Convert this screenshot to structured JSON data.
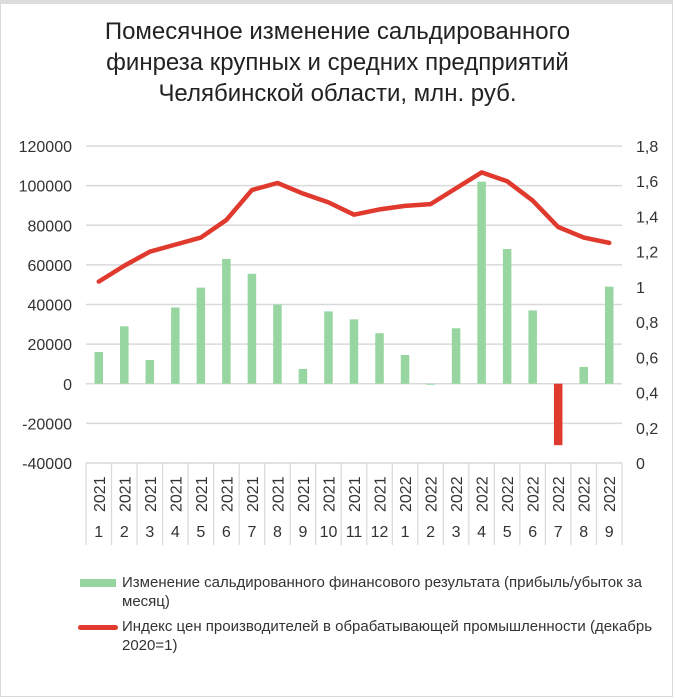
{
  "title": "Помесячное изменение сальдированного\nфинреза крупных и средних предприятий\nЧелябинской области, млн. руб.",
  "colors": {
    "bar_positive": "#97d5a1",
    "bar_negative": "#e0392d",
    "line": "#e0392d",
    "grid": "#d9d9d9",
    "axis_text": "#333333"
  },
  "legend": {
    "bar_label": "Изменение сальдированного финансового результата (прибыль/убыток за месяц)",
    "line_label": "Индекс цен производителей в обрабатывающей промышленности (декабрь 2020=1)"
  },
  "chart_data": {
    "type": "bar+line",
    "title": "Помесячное изменение сальдированного финреза крупных и средних предприятий Челябинской области, млн. руб.",
    "categories": [
      {
        "year": "2021",
        "month": "1"
      },
      {
        "year": "2021",
        "month": "2"
      },
      {
        "year": "2021",
        "month": "3"
      },
      {
        "year": "2021",
        "month": "4"
      },
      {
        "year": "2021",
        "month": "5"
      },
      {
        "year": "2021",
        "month": "6"
      },
      {
        "year": "2021",
        "month": "7"
      },
      {
        "year": "2021",
        "month": "8"
      },
      {
        "year": "2021",
        "month": "9"
      },
      {
        "year": "2021",
        "month": "10"
      },
      {
        "year": "2021",
        "month": "11"
      },
      {
        "year": "2021",
        "month": "12"
      },
      {
        "year": "2022",
        "month": "1"
      },
      {
        "year": "2022",
        "month": "2"
      },
      {
        "year": "2022",
        "month": "3"
      },
      {
        "year": "2022",
        "month": "4"
      },
      {
        "year": "2022",
        "month": "5"
      },
      {
        "year": "2022",
        "month": "6"
      },
      {
        "year": "2022",
        "month": "7"
      },
      {
        "year": "2022",
        "month": "8"
      },
      {
        "year": "2022",
        "month": "9"
      }
    ],
    "series": [
      {
        "name": "Изменение сальдированного финансового результата (прибыль/убыток за месяц)",
        "type": "bar",
        "axis": "left",
        "values": [
          16000,
          29000,
          12000,
          38500,
          48500,
          63000,
          55500,
          40000,
          7500,
          36500,
          32500,
          25500,
          14500,
          -500,
          28000,
          102000,
          68000,
          37000,
          -31000,
          8500,
          49000
        ]
      },
      {
        "name": "Индекс цен производителей в обрабатывающей промышленности (декабрь 2020=1)",
        "type": "line",
        "axis": "right",
        "values": [
          1.03,
          1.12,
          1.2,
          1.24,
          1.28,
          1.38,
          1.55,
          1.59,
          1.53,
          1.48,
          1.41,
          1.44,
          1.46,
          1.47,
          1.56,
          1.65,
          1.6,
          1.49,
          1.34,
          1.28,
          1.25
        ]
      }
    ],
    "y_left": {
      "ylim": [
        -40000,
        120000
      ],
      "ticks": [
        "120000",
        "100000",
        "80000",
        "60000",
        "40000",
        "20000",
        "0",
        "-20000",
        "-40000"
      ]
    },
    "y_right": {
      "ylim": [
        0,
        1.8
      ],
      "ticks": [
        "1,8",
        "1,6",
        "1,4",
        "1,2",
        "1",
        "0,8",
        "0,6",
        "0,4",
        "0,2",
        "0"
      ]
    },
    "grid": true,
    "legend_position": "bottom"
  }
}
